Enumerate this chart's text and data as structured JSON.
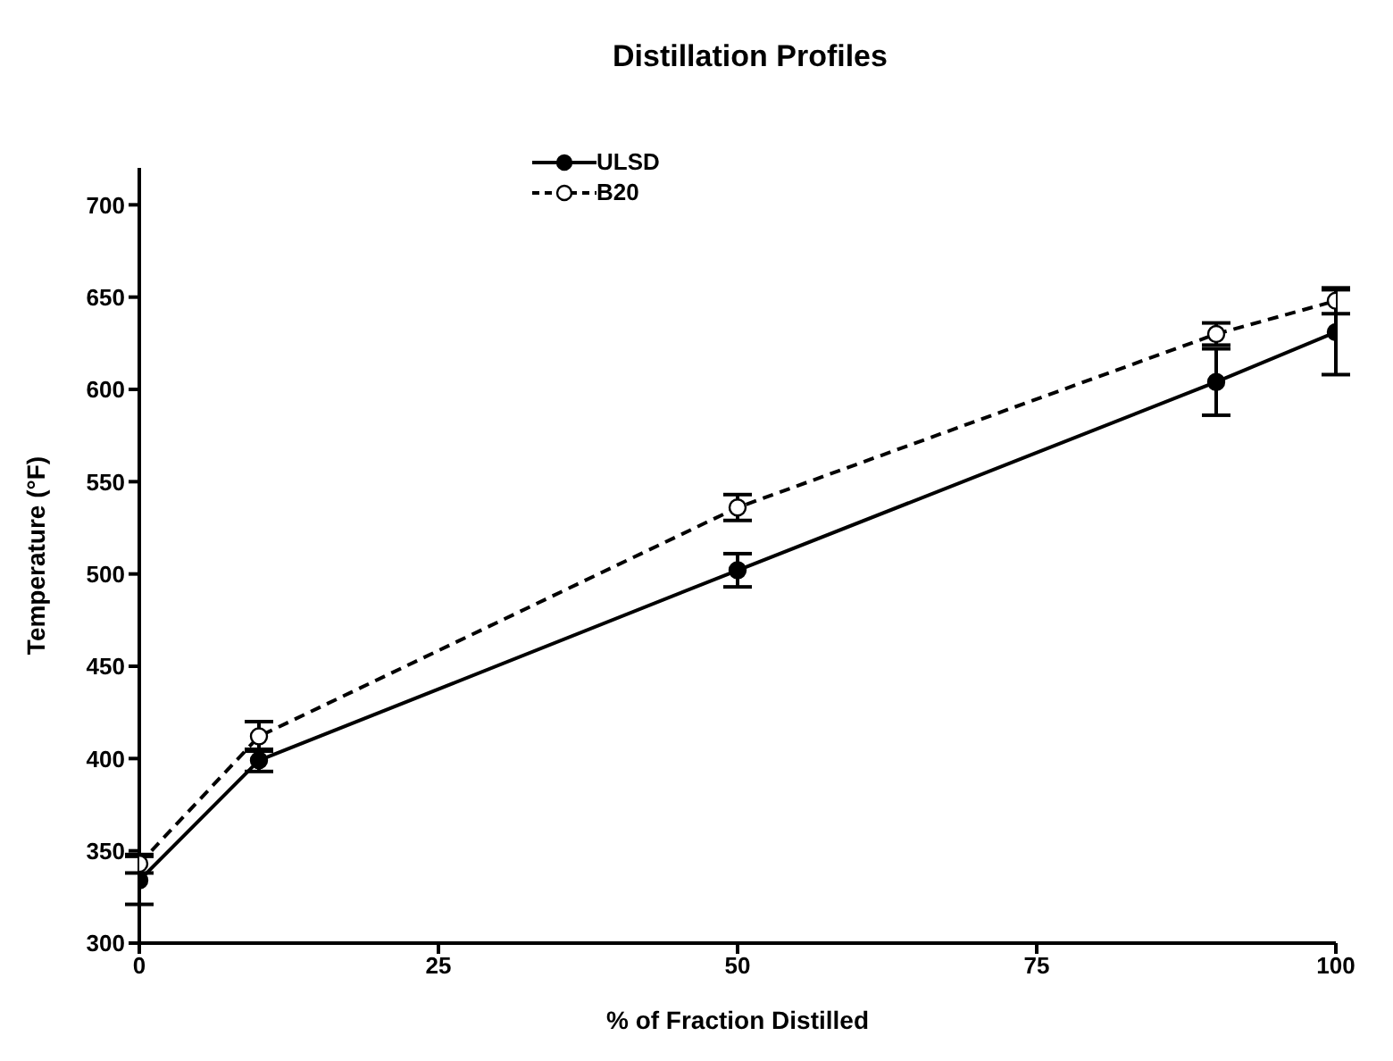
{
  "chart_data": {
    "type": "line",
    "title": "Distillation Profiles",
    "xlabel": "% of Fraction Distilled",
    "ylabel": "Temperature (°F)",
    "x": [
      0,
      10,
      50,
      90,
      100
    ],
    "series": [
      {
        "name": "ULSD",
        "color": "#000000",
        "values": [
          334,
          399,
          502,
          604,
          631
        ],
        "errors": [
          13,
          6,
          9,
          18,
          23
        ],
        "marker": "circle",
        "line_style": "solid"
      },
      {
        "name": "B20",
        "color": "#000000",
        "values": [
          343,
          412,
          536,
          630,
          648
        ],
        "errors": [
          5,
          8,
          7,
          6,
          7
        ],
        "marker": "circle",
        "line_style": "dashed"
      }
    ],
    "xlim": [
      0,
      100
    ],
    "xticks": [
      0,
      25,
      50,
      75,
      100
    ],
    "ylim": [
      300,
      720
    ],
    "yticks": [
      300,
      350,
      400,
      450,
      500,
      550,
      600,
      650,
      700
    ],
    "legend": "top",
    "grid": false
  }
}
